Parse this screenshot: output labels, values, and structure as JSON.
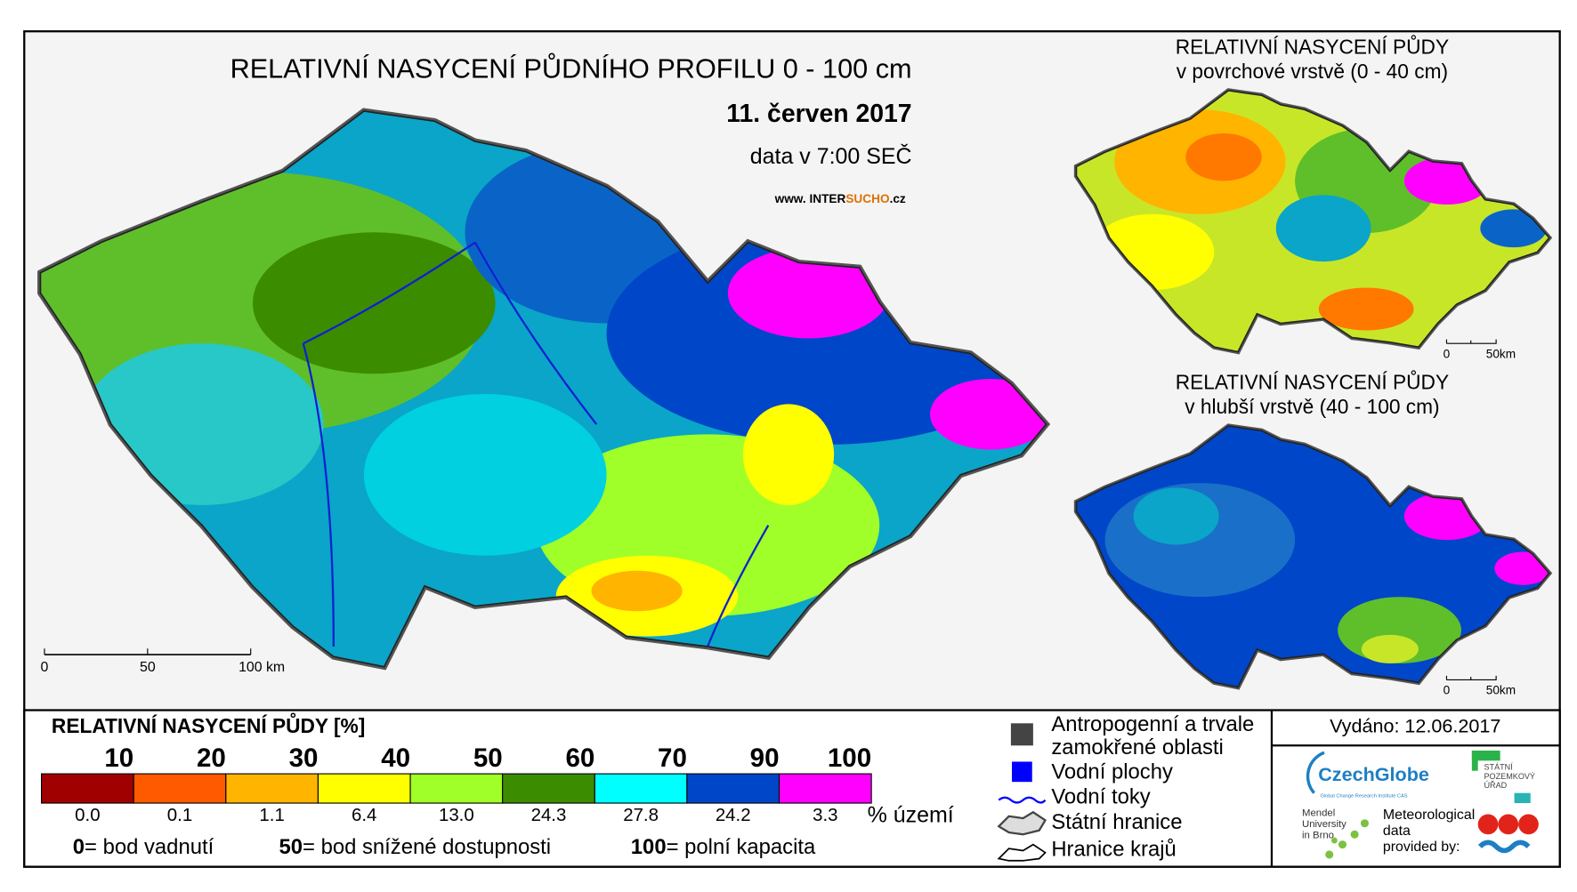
{
  "main_map": {
    "title": "RELATIVNÍ NASYCENÍ PŮDNÍHO PROFILU 0 - 100 cm",
    "date": "11. červen 2017",
    "time": "data v 7:00 SEČ",
    "website": {
      "prefix": "www. INTER",
      "highlight": "SUCHO",
      "suffix": ".cz"
    },
    "scale_labels": [
      "0",
      "50",
      "100 km"
    ]
  },
  "inset_maps": [
    {
      "title_lines": [
        "RELATIVNÍ NASYCENÍ PŮDY",
        "v povrchové vrstvě (0 - 40 cm)"
      ],
      "scale_labels": [
        "0",
        "50km"
      ]
    },
    {
      "title_lines": [
        "RELATIVNÍ NASYCENÍ PŮDY",
        "v hlubší vrstvě (40 - 100 cm)"
      ],
      "scale_labels": [
        "0",
        "50km"
      ]
    }
  ],
  "legend": {
    "title": "RELATIVNÍ NASYCENÍ PŮDY [%]",
    "thresholds": [
      10,
      20,
      30,
      40,
      50,
      60,
      70,
      90,
      100
    ],
    "colors": [
      "#a00000",
      "#ff5a00",
      "#ffb400",
      "#ffff00",
      "#a0ff28",
      "#3c8c00",
      "#00ffff",
      "#0046c8",
      "#ff00ff"
    ],
    "shares": [
      "0.0",
      "0.1",
      "1.1",
      "6.4",
      "13.0",
      "24.3",
      "27.8",
      "24.2",
      "3.3"
    ],
    "share_unit": "% území",
    "notes": [
      {
        "key": "0",
        "text": "= bod vadnutí"
      },
      {
        "key": "50",
        "text": "= bod snížené dostupnosti"
      },
      {
        "key": "100",
        "text": "= polní kapacita"
      }
    ]
  },
  "symbols": [
    {
      "label": "Antropogenní a trvale",
      "label2": "zamokřené oblasti"
    },
    {
      "label": "Vodní plochy"
    },
    {
      "label": "Vodní toky"
    },
    {
      "label": "Státní hranice"
    },
    {
      "label": "Hranice krajů"
    }
  ],
  "issued": "Vydáno: 12.06.2017",
  "logos": {
    "czechglobe": "CzechGlobe",
    "czechglobe_sub": "Global Change Research Institute CAS",
    "spu": [
      "STÁTNÍ",
      "POZEMKOVÝ",
      "ÚŘAD"
    ],
    "mendel": [
      "Mendel",
      "University",
      "in Brno"
    ],
    "meteo": [
      "Meteorological",
      "data",
      "provided by:"
    ]
  }
}
